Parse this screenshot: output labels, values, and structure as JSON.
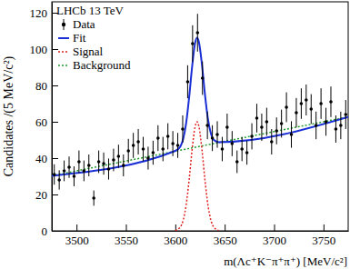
{
  "chart_data": {
    "type": "scatter",
    "title": "LHCb 13 TeV",
    "x_label": "m(Λc⁺K⁻π⁺π⁺) [MeV/c²]",
    "y_label": "Candidates /(5 MeV/c²)",
    "xlim": [
      3475,
      3775
    ],
    "ylim": [
      0,
      126
    ],
    "xticks": [
      3500,
      3550,
      3600,
      3650,
      3700,
      3750
    ],
    "yticks": [
      0,
      20,
      40,
      60,
      80,
      100,
      120
    ],
    "legend": "top-left",
    "grid": false,
    "series": [
      {
        "name": "Data",
        "type": "scatter",
        "color": "#000000",
        "marker": "circle",
        "x": [
          3477.5,
          3482.5,
          3487.5,
          3492.5,
          3497.5,
          3502.5,
          3507.5,
          3512.5,
          3517.5,
          3522.5,
          3527.5,
          3532.5,
          3537.5,
          3542.5,
          3547.5,
          3552.5,
          3557.5,
          3562.5,
          3567.5,
          3572.5,
          3577.5,
          3582.5,
          3587.5,
          3592.5,
          3597.5,
          3602.5,
          3607.5,
          3612.5,
          3617.5,
          3622.5,
          3627.5,
          3632.5,
          3637.5,
          3642.5,
          3647.5,
          3652.5,
          3657.5,
          3662.5,
          3667.5,
          3672.5,
          3677.5,
          3682.5,
          3687.5,
          3692.5,
          3697.5,
          3702.5,
          3707.5,
          3712.5,
          3717.5,
          3722.5,
          3727.5,
          3732.5,
          3737.5,
          3742.5,
          3747.5,
          3752.5,
          3757.5,
          3762.5,
          3767.5,
          3772.5
        ],
        "values": [
          31,
          28,
          33,
          35,
          30,
          38,
          33,
          36,
          18,
          38,
          37,
          34,
          39,
          41,
          36,
          44,
          47,
          49,
          45,
          40,
          43,
          51,
          45,
          52,
          48,
          47,
          56,
          82,
          103,
          109,
          84,
          58,
          51,
          53,
          45,
          57,
          48,
          38,
          45,
          43,
          52,
          62,
          57,
          60,
          49,
          55,
          59,
          68,
          53,
          65,
          70,
          72,
          67,
          58,
          70,
          60,
          71,
          56,
          58,
          64
        ],
        "errors": [
          5.6,
          5.3,
          5.7,
          5.9,
          5.5,
          6.2,
          5.7,
          6.0,
          4.2,
          6.2,
          6.1,
          5.8,
          6.2,
          6.4,
          6.0,
          6.6,
          6.9,
          7.0,
          6.7,
          6.3,
          6.6,
          7.1,
          6.7,
          7.2,
          6.9,
          6.9,
          7.5,
          9.1,
          10.1,
          10.4,
          9.2,
          7.6,
          7.1,
          7.3,
          6.7,
          7.5,
          6.9,
          6.2,
          6.7,
          6.6,
          7.2,
          7.9,
          7.5,
          7.7,
          7.0,
          7.4,
          7.7,
          8.2,
          7.3,
          8.1,
          8.4,
          8.5,
          8.2,
          7.6,
          8.4,
          7.7,
          8.4,
          7.5,
          7.6,
          8.0
        ]
      },
      {
        "name": "Fit",
        "type": "line",
        "color": "#1a2fd6",
        "line_style": "solid",
        "x": [
          3475,
          3600,
          3605,
          3608,
          3611,
          3614,
          3617,
          3620,
          3622,
          3624,
          3627,
          3630,
          3633,
          3636,
          3639,
          3644,
          3775
        ],
        "values": [
          30.3,
          44.0,
          46.3,
          50.6,
          59.3,
          73.4,
          90.2,
          103.2,
          106.2,
          103.6,
          91.3,
          75.1,
          61.7,
          53.6,
          50.0,
          48.8,
          62.7
        ]
      },
      {
        "name": "Signal",
        "type": "line",
        "color": "#e0201b",
        "line_style": "dotted",
        "x": [
          3600,
          3605,
          3608,
          3611,
          3614,
          3617,
          3620,
          3622,
          3624,
          3627,
          3630,
          3633,
          3636,
          3639,
          3644
        ],
        "values": [
          0.2,
          2.0,
          5.9,
          14.3,
          28.1,
          44.6,
          57.2,
          60,
          57.2,
          44.6,
          28.1,
          14.3,
          5.9,
          2.0,
          0.2
        ]
      },
      {
        "name": "Background",
        "type": "line",
        "color": "#1f9e2c",
        "line_style": "dotted",
        "x": [
          3475,
          3775
        ],
        "values": [
          30.3,
          62.7
        ]
      }
    ]
  }
}
